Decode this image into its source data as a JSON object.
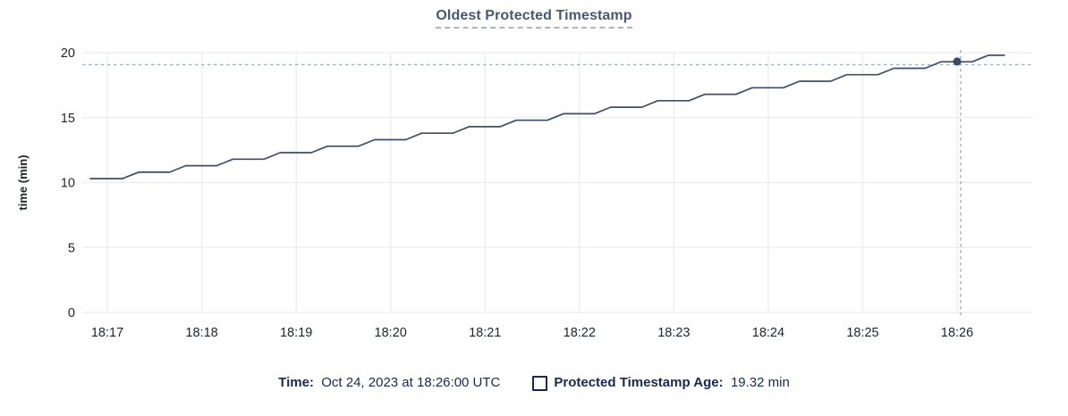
{
  "title": "Oldest Protected Timestamp",
  "legend": {
    "time_label": "Time:",
    "time_value": "Oct 24, 2023 at 18:26:00 UTC",
    "series_label": "Protected Timestamp Age:",
    "series_value": "19.32 min"
  },
  "colors": {
    "line": "#3f4e66",
    "dot": "#3a4a63",
    "grid": "#ececec",
    "crosshair": "#9fb2c0",
    "axis_text": "#1f2328",
    "title_text": "#475872",
    "legend_text": "#17294d"
  },
  "chart_data": {
    "type": "line",
    "title": "Oldest Protected Timestamp",
    "ylabel": "time (min)",
    "ylim": [
      0,
      20
    ],
    "y_ticks": [
      0,
      5,
      10,
      15,
      20
    ],
    "x_tick_labels": [
      "18:17",
      "18:18",
      "18:19",
      "18:20",
      "18:21",
      "18:22",
      "18:23",
      "18:24",
      "18:25",
      "18:26"
    ],
    "x_unit": "minutes after 18:17 UTC, Oct 24 2023",
    "grid": true,
    "legend_position": "bottom",
    "series": [
      {
        "name": "Protected Timestamp Age",
        "unit": "min",
        "points": [
          [
            -0.18,
            10.3
          ],
          [
            0.16,
            10.3
          ],
          [
            0.33,
            10.8
          ],
          [
            0.66,
            10.8
          ],
          [
            0.83,
            11.3
          ],
          [
            1.16,
            11.3
          ],
          [
            1.33,
            11.8
          ],
          [
            1.66,
            11.8
          ],
          [
            1.83,
            12.3
          ],
          [
            2.16,
            12.3
          ],
          [
            2.33,
            12.8
          ],
          [
            2.66,
            12.8
          ],
          [
            2.83,
            13.3
          ],
          [
            3.16,
            13.3
          ],
          [
            3.33,
            13.8
          ],
          [
            3.66,
            13.8
          ],
          [
            3.83,
            14.3
          ],
          [
            4.16,
            14.3
          ],
          [
            4.33,
            14.8
          ],
          [
            4.66,
            14.8
          ],
          [
            4.83,
            15.3
          ],
          [
            5.16,
            15.3
          ],
          [
            5.33,
            15.8
          ],
          [
            5.66,
            15.8
          ],
          [
            5.83,
            16.3
          ],
          [
            6.16,
            16.3
          ],
          [
            6.33,
            16.8
          ],
          [
            6.66,
            16.8
          ],
          [
            6.83,
            17.3
          ],
          [
            7.16,
            17.3
          ],
          [
            7.33,
            17.8
          ],
          [
            7.66,
            17.8
          ],
          [
            7.83,
            18.3
          ],
          [
            8.16,
            18.3
          ],
          [
            8.33,
            18.8
          ],
          [
            8.66,
            18.8
          ],
          [
            8.83,
            19.3
          ],
          [
            9.16,
            19.3
          ],
          [
            9.33,
            19.8
          ],
          [
            9.5,
            19.8
          ]
        ]
      }
    ],
    "hover": {
      "x": 9.0,
      "x_label": "18:26",
      "value": 19.32,
      "time_text": "Oct 24, 2023 at 18:26:00 UTC",
      "value_text": "19.32 min"
    }
  }
}
